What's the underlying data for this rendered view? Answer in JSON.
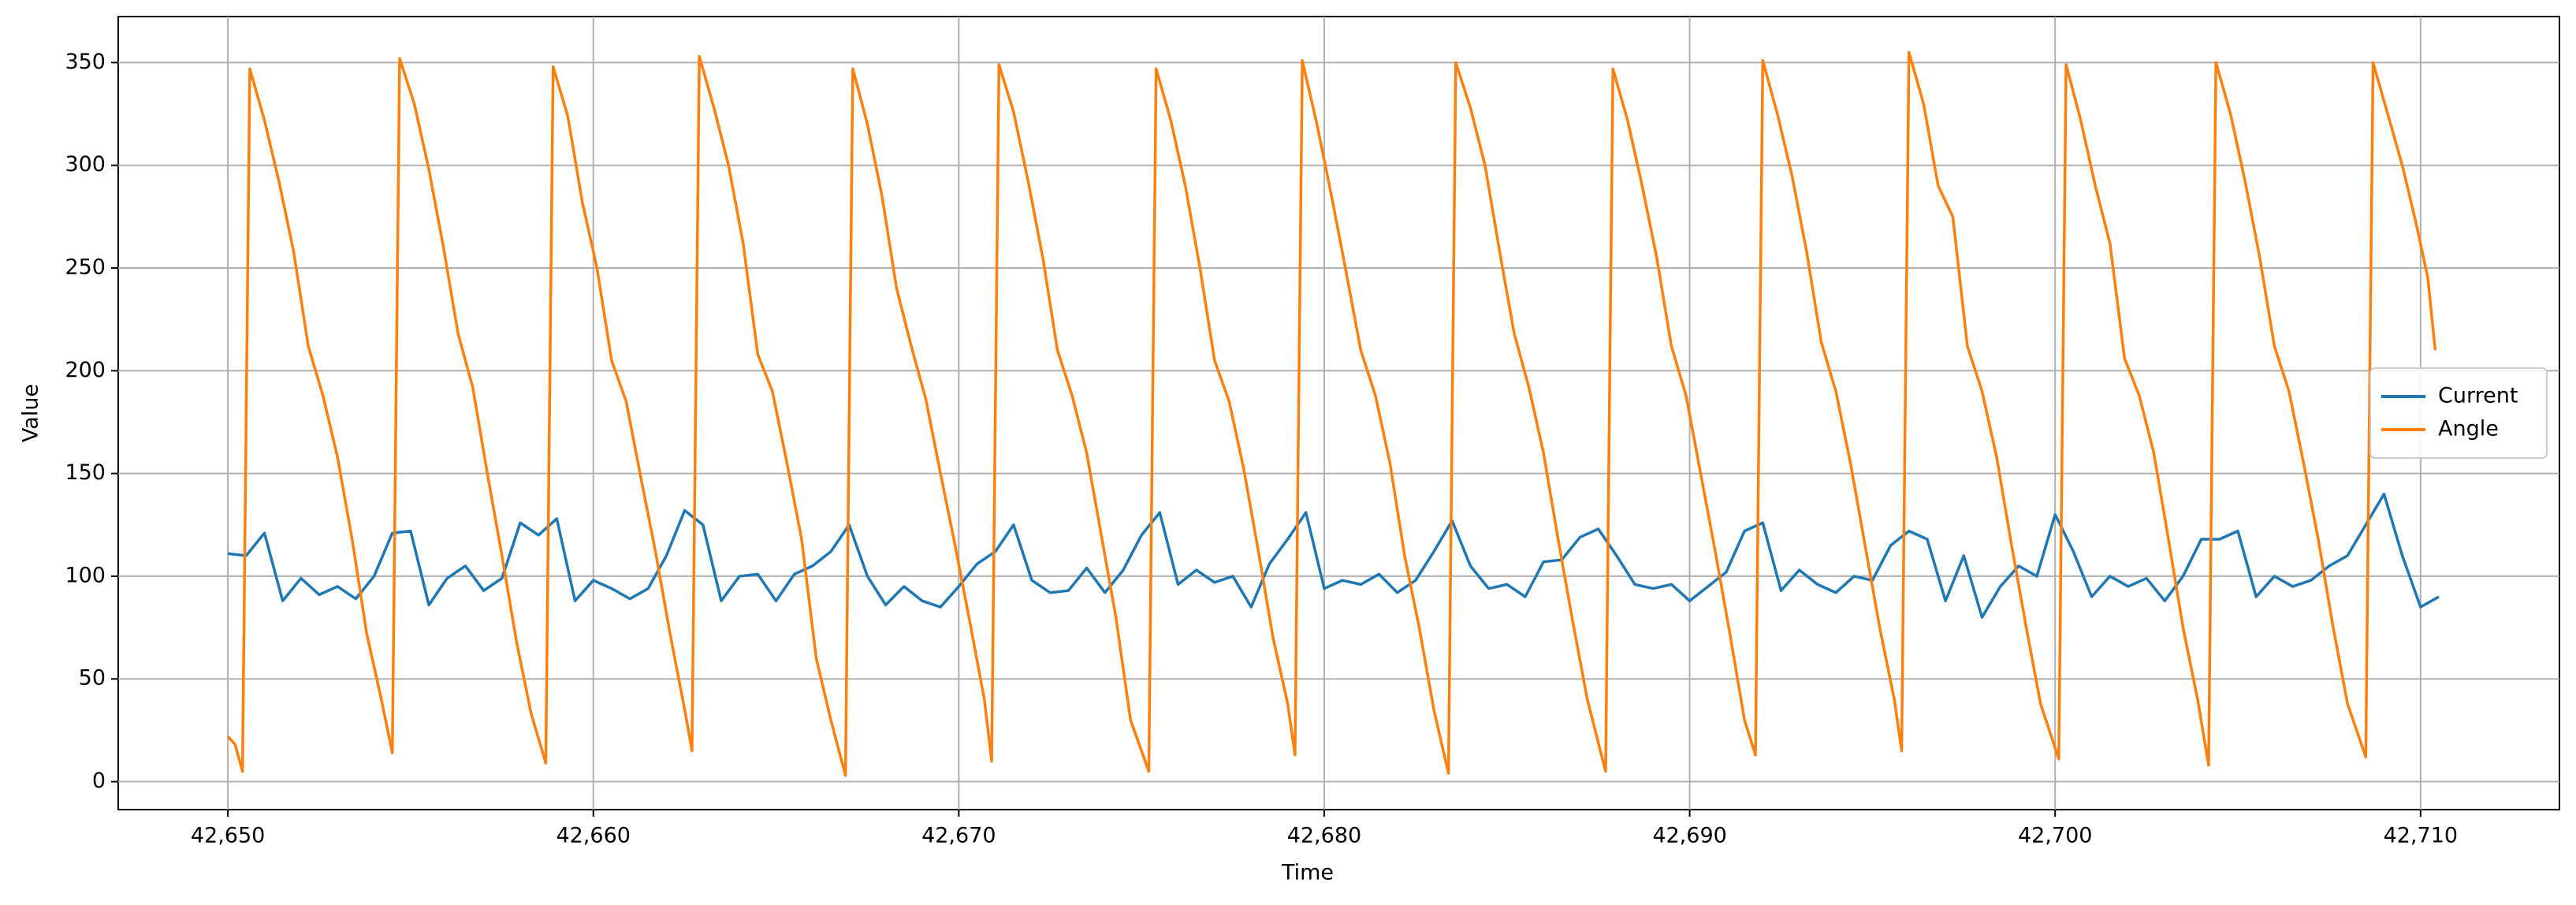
{
  "chart_data": {
    "type": "line",
    "xlabel": "Time",
    "ylabel": "Value",
    "xlim": [
      42647,
      42713.8
    ],
    "ylim": [
      -13.6,
      372.4
    ],
    "xticks": [
      {
        "value": 42650,
        "label": "42,650"
      },
      {
        "value": 42660,
        "label": "42,660"
      },
      {
        "value": 42670,
        "label": "42,670"
      },
      {
        "value": 42680,
        "label": "42,680"
      },
      {
        "value": 42690,
        "label": "42,690"
      },
      {
        "value": 42700,
        "label": "42,700"
      },
      {
        "value": 42710,
        "label": "42,710"
      }
    ],
    "yticks": [
      0,
      50,
      100,
      150,
      200,
      250,
      300,
      350
    ],
    "grid": true,
    "legend": "center right",
    "series": [
      {
        "name": "Current",
        "color": "#1f77b4",
        "x": [
          42650,
          42650.5,
          42651,
          42651.5,
          42652,
          42652.5,
          42653,
          42653.5,
          42654,
          42654.5,
          42655,
          42655.5,
          42656,
          42656.5,
          42657,
          42657.5,
          42658,
          42658.5,
          42659,
          42659.5,
          42660,
          42660.5,
          42661,
          42661.5,
          42662,
          42662.5,
          42663,
          42663.5,
          42664,
          42664.5,
          42665,
          42665.5,
          42666,
          42666.5,
          42667,
          42667.5,
          42668,
          42668.5,
          42669,
          42669.5,
          42670,
          42670.5,
          42671,
          42671.5,
          42672,
          42672.5,
          42673,
          42673.5,
          42674,
          42674.5,
          42675,
          42675.5,
          42676,
          42676.5,
          42677,
          42677.5,
          42678,
          42678.5,
          42679,
          42679.5,
          42680,
          42680.5,
          42681,
          42681.5,
          42682,
          42682.5,
          42683,
          42683.5,
          42684,
          42684.5,
          42685,
          42685.5,
          42686,
          42686.5,
          42687,
          42687.5,
          42688,
          42688.5,
          42689,
          42689.5,
          42690,
          42690.5,
          42691,
          42691.5,
          42692,
          42692.5,
          42693,
          42693.5,
          42694,
          42694.5,
          42695,
          42695.5,
          42696,
          42696.5,
          42697,
          42697.5,
          42698,
          42698.5,
          42699,
          42699.5,
          42700,
          42700.5,
          42701,
          42701.5,
          42702,
          42702.5,
          42703,
          42703.5,
          42704,
          42704.5,
          42705,
          42705.5,
          42706,
          42706.5,
          42707,
          42707.5,
          42708,
          42708.5,
          42709,
          42709.5,
          42710,
          42710.5
        ],
        "values": [
          111,
          110,
          121,
          88,
          99,
          91,
          95,
          89,
          100,
          121,
          122,
          86,
          99,
          105,
          93,
          99,
          126,
          120,
          128,
          88,
          98,
          94,
          89,
          94,
          110,
          132,
          125,
          88,
          100,
          101,
          88,
          101,
          105,
          112,
          125,
          100,
          86,
          95,
          88,
          85,
          95,
          106,
          112,
          125,
          98,
          92,
          93,
          104,
          92,
          103,
          120,
          131,
          96,
          103,
          97,
          100,
          85,
          106,
          118,
          131,
          94,
          98,
          96,
          101,
          92,
          98,
          112,
          127,
          105,
          94,
          96,
          90,
          107,
          108,
          119,
          123,
          110,
          96,
          94,
          96,
          88,
          95,
          102,
          122,
          126,
          93,
          103,
          96,
          92,
          100,
          98,
          115,
          122,
          118,
          88,
          110,
          80,
          95,
          105,
          100,
          130,
          112,
          90,
          100,
          95,
          99,
          88,
          100,
          118,
          118,
          122,
          90,
          100,
          95,
          98,
          105,
          110,
          125,
          140,
          110,
          85,
          90
        ]
      },
      {
        "name": "Angle",
        "color": "#ff7f0e",
        "x": [
          42650,
          42650.2,
          42650.4,
          42650.6,
          42651,
          42651.4,
          42651.8,
          42652.2,
          42652.6,
          42653,
          42653.4,
          42653.8,
          42654.2,
          42654.5,
          42654.7,
          42655.1,
          42655.5,
          42655.9,
          42656.3,
          42656.7,
          42657.1,
          42657.5,
          42657.9,
          42658.3,
          42658.7,
          42658.9,
          42659.3,
          42659.7,
          42660.1,
          42660.5,
          42660.9,
          42661.3,
          42661.7,
          42662.1,
          42662.5,
          42662.7,
          42662.9,
          42663.3,
          42663.7,
          42664.1,
          42664.5,
          42664.9,
          42665.3,
          42665.7,
          42666.1,
          42666.5,
          42666.9,
          42667.1,
          42667.5,
          42667.9,
          42668.3,
          42668.7,
          42669.1,
          42669.5,
          42669.9,
          42670.3,
          42670.7,
          42670.9,
          42671.1,
          42671.5,
          42671.9,
          42672.3,
          42672.7,
          42673.1,
          42673.5,
          42673.9,
          42674.3,
          42674.7,
          42675.2,
          42675.4,
          42675.8,
          42676.2,
          42676.6,
          42677,
          42677.4,
          42677.8,
          42678.2,
          42678.6,
          42679,
          42679.2,
          42679.4,
          42679.8,
          42680.2,
          42680.6,
          42681,
          42681.4,
          42681.8,
          42682.2,
          42682.6,
          42683,
          42683.4,
          42683.6,
          42684,
          42684.4,
          42684.8,
          42685.2,
          42685.6,
          42686,
          42686.4,
          42686.8,
          42687.2,
          42687.7,
          42687.9,
          42688.3,
          42688.7,
          42689.1,
          42689.5,
          42689.9,
          42690.3,
          42690.7,
          42691.1,
          42691.5,
          42691.8,
          42692,
          42692.4,
          42692.8,
          42693.2,
          42693.6,
          42694,
          42694.4,
          42694.8,
          42695.2,
          42695.6,
          42695.8,
          42696,
          42696.4,
          42696.8,
          42697.2,
          42697.6,
          42698,
          42698.4,
          42698.8,
          42699.2,
          42699.6,
          42700.1,
          42700.3,
          42700.7,
          42701.1,
          42701.5,
          42701.9,
          42702.3,
          42702.7,
          42703.1,
          42703.5,
          42703.9,
          42704.2,
          42704.4,
          42704.8,
          42705.2,
          42705.6,
          42706,
          42706.4,
          42706.8,
          42707.2,
          42707.6,
          42708,
          42708.5,
          42708.7,
          42709.1,
          42709.5,
          42709.9,
          42710.2,
          42710.4
        ],
        "values": [
          22,
          18,
          5,
          347,
          322,
          292,
          258,
          212,
          188,
          158,
          118,
          72,
          40,
          14,
          352,
          330,
          298,
          260,
          218,
          192,
          150,
          110,
          68,
          33,
          9,
          348,
          324,
          282,
          250,
          205,
          185,
          148,
          112,
          72,
          35,
          15,
          353,
          328,
          300,
          262,
          208,
          190,
          155,
          118,
          60,
          30,
          3,
          347,
          320,
          285,
          240,
          212,
          186,
          150,
          115,
          78,
          40,
          10,
          349,
          326,
          292,
          255,
          210,
          188,
          160,
          120,
          80,
          30,
          5,
          347,
          322,
          290,
          250,
          205,
          185,
          152,
          112,
          70,
          38,
          13,
          351,
          320,
          285,
          248,
          210,
          188,
          155,
          110,
          75,
          35,
          4,
          350,
          328,
          300,
          258,
          218,
          192,
          160,
          118,
          78,
          40,
          5,
          347,
          322,
          290,
          255,
          212,
          188,
          150,
          112,
          72,
          30,
          13,
          351,
          325,
          295,
          258,
          214,
          190,
          155,
          115,
          75,
          40,
          15,
          355,
          330,
          290,
          275,
          212,
          190,
          158,
          116,
          76,
          38,
          11,
          349,
          322,
          290,
          262,
          206,
          188,
          160,
          118,
          75,
          40,
          8,
          350,
          325,
          292,
          255,
          212,
          190,
          155,
          118,
          76,
          38,
          12,
          350,
          325,
          300,
          270,
          245,
          210
        ]
      }
    ]
  }
}
